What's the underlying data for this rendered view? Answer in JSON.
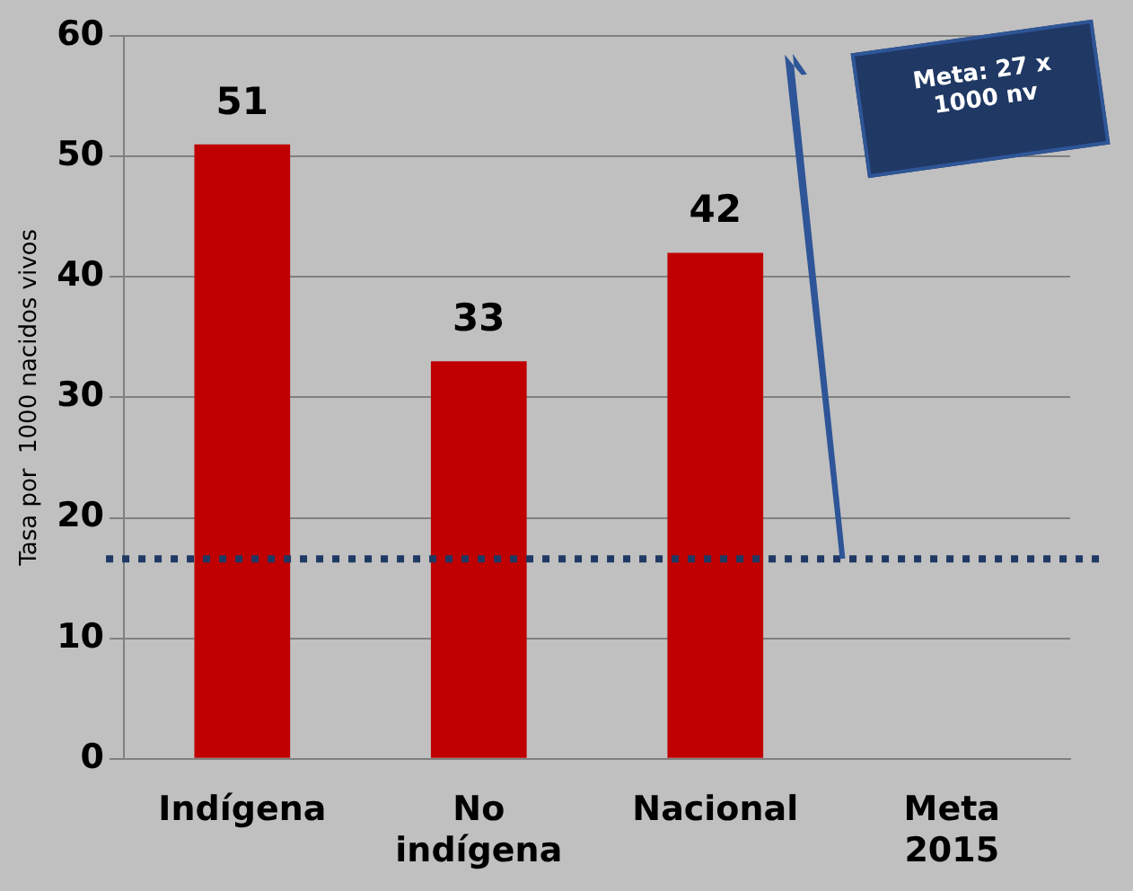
{
  "chart_data": {
    "type": "bar",
    "ylabel": "Tasa por  1000 nacidos vivos",
    "categories": [
      "Indígena",
      "No indígena",
      "Nacional",
      "Meta 2015"
    ],
    "values": [
      51,
      33,
      42,
      null
    ],
    "color": "#c00000",
    "data_labels": true,
    "ylim": [
      0,
      60
    ],
    "yticks": [
      0,
      10,
      20,
      30,
      40,
      50,
      60
    ],
    "grid": "y",
    "legend": false,
    "annotations": [
      "Meta: 27 x 1000 nv"
    ],
    "ref_lines": [
      {
        "axis": "y",
        "value": 16.6,
        "color": "#1f3864",
        "line_style": "dotted"
      }
    ]
  }
}
